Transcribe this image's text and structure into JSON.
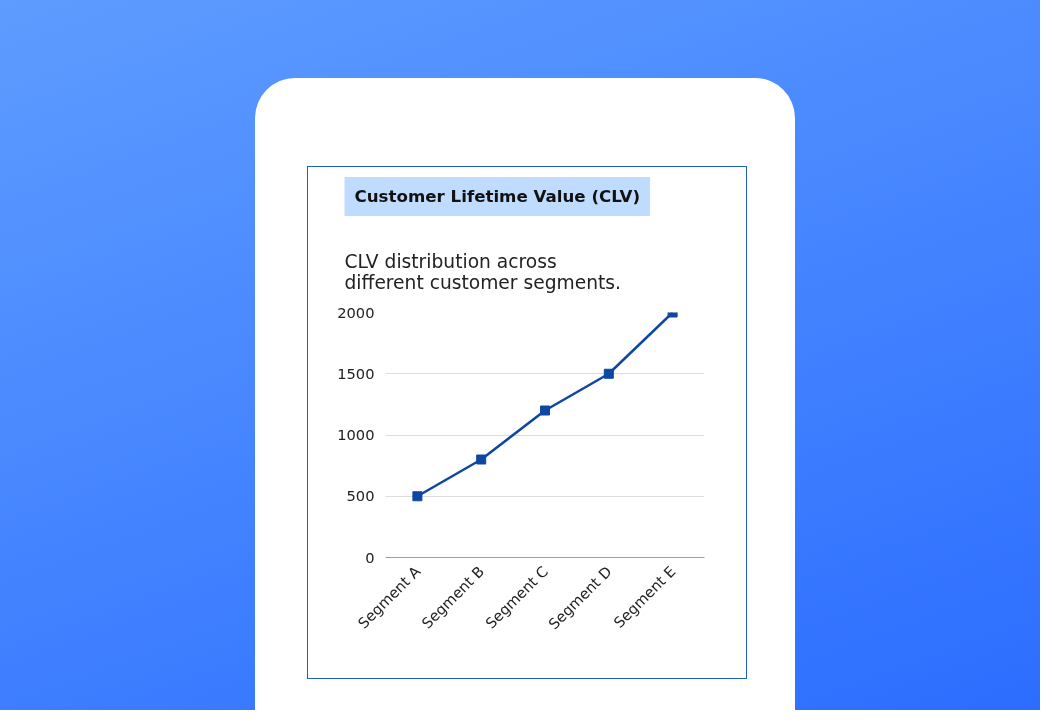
{
  "chart_data": {
    "type": "line",
    "title": "Customer Lifetime Value (CLV)",
    "subtitle": "CLV distribution across different customer segments.",
    "categories": [
      "Segment A",
      "Segment B",
      "Segment C",
      "Segment D",
      "Segment E"
    ],
    "series": [
      {
        "color": "#0d47a1",
        "values": [
          500,
          800,
          1200,
          1500,
          2000
        ]
      }
    ],
    "ylim": [
      0,
      2000
    ],
    "yticks": [
      0,
      500,
      1000,
      1500,
      2000
    ],
    "grid": "y",
    "marker": "square",
    "line_style": "solid"
  }
}
